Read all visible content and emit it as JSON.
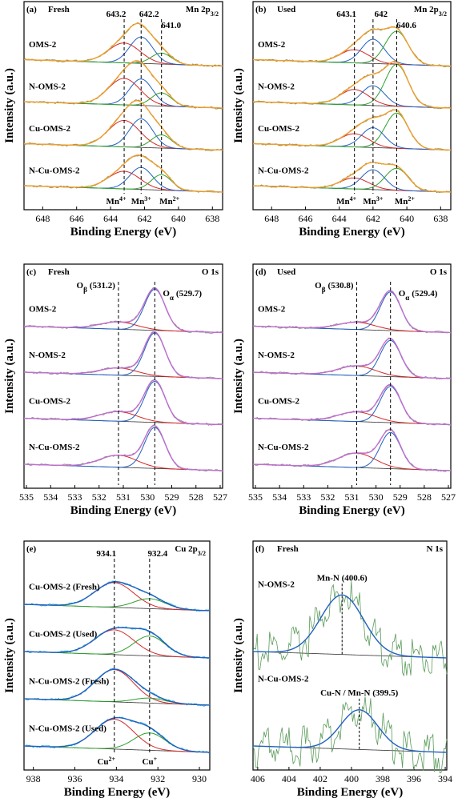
{
  "chart_data": [
    {
      "type": "line",
      "label": "(a)",
      "condition": "Fresh",
      "element": "Mn 2p",
      "element_sub": "3/2",
      "xlabel": "Binding Energy (eV)",
      "ylabel": "Intensity (a.u.)",
      "xlim": [
        649.1,
        637.4
      ],
      "xticks": [
        648,
        646,
        644,
        642,
        640,
        638
      ],
      "peak_lines": [
        643.2,
        642.2,
        {
          "value": 641.0,
          "label": "641.0"
        }
      ],
      "species": [
        {
          "name": "Mn",
          "charge": "4+"
        },
        {
          "name": "Mn",
          "charge": "3+"
        },
        {
          "name": "Mn",
          "charge": "2+"
        }
      ],
      "fwhm": [
        2.2,
        1.6,
        1.4
      ],
      "colors": [
        "#d62728",
        "#2060c0",
        "#2ca02c"
      ],
      "envelope_color": "#f0a030",
      "raw_color": "#8a8a50",
      "samples": [
        {
          "name": "OMS-2",
          "heights": [
            0.45,
            0.6,
            0.25
          ]
        },
        {
          "name": "N-OMS-2",
          "heights": [
            0.6,
            0.6,
            0.3
          ]
        },
        {
          "name": "Cu-OMS-2",
          "heights": [
            0.6,
            0.65,
            0.3
          ]
        },
        {
          "name": "N-Cu-OMS-2",
          "heights": [
            0.4,
            0.5,
            0.35
          ]
        }
      ]
    },
    {
      "type": "line",
      "label": "(b)",
      "condition": "Used",
      "element": "Mn 2p",
      "element_sub": "3/2",
      "xlabel": "Binding Energy (eV)",
      "ylabel": "Intensity (a.u.)",
      "xlim": [
        649.1,
        637.4
      ],
      "xticks": [
        648,
        646,
        644,
        642,
        640,
        638
      ],
      "peak_lines": [
        643.1,
        642,
        640.6
      ],
      "species": [
        {
          "name": "Mn",
          "charge": "4+"
        },
        {
          "name": "Mn",
          "charge": "3+"
        },
        {
          "name": "Mn",
          "charge": "2+"
        }
      ],
      "fwhm": [
        2.0,
        1.6,
        1.6
      ],
      "colors": [
        "#d62728",
        "#2060c0",
        "#2ca02c"
      ],
      "envelope_color": "#f0a030",
      "raw_color": "#8a8a50",
      "samples": [
        {
          "name": "OMS-2",
          "heights": [
            0.3,
            0.55,
            0.75
          ]
        },
        {
          "name": "N-OMS-2",
          "heights": [
            0.35,
            0.45,
            0.95
          ]
        },
        {
          "name": "Cu-OMS-2",
          "heights": [
            0.3,
            0.45,
            0.8
          ]
        },
        {
          "name": "N-Cu-OMS-2",
          "heights": [
            0.25,
            0.45,
            0.5
          ]
        }
      ]
    },
    {
      "type": "line",
      "label": "(c)",
      "condition": "Fresh",
      "element": "O 1s",
      "xlabel": "Binding Energy (eV)",
      "ylabel": "Intensity (a.u.)",
      "xlim": [
        535.1,
        526.9
      ],
      "xticks": [
        535,
        534,
        533,
        532,
        531,
        530,
        529,
        528,
        527
      ],
      "peak_lines": [
        {
          "value": 531.2,
          "label": "(531.2)"
        },
        {
          "value": 529.7,
          "label": "(529.7)"
        }
      ],
      "species": [
        {
          "name": "O",
          "sub": "β"
        },
        {
          "name": "O",
          "sub": "α"
        }
      ],
      "fwhm": [
        1.8,
        1.0
      ],
      "colors": [
        "#d62728",
        "#2060c0"
      ],
      "envelope_color": "#c070d0",
      "raw_color": "#909090",
      "samples": [
        {
          "name": "OMS-2",
          "heights": [
            0.15,
            0.85
          ]
        },
        {
          "name": "N-OMS-2",
          "heights": [
            0.15,
            0.9
          ]
        },
        {
          "name": "Cu-OMS-2",
          "heights": [
            0.2,
            0.85
          ]
        },
        {
          "name": "N-Cu-OMS-2",
          "heights": [
            0.25,
            0.85
          ]
        }
      ]
    },
    {
      "type": "line",
      "label": "(d)",
      "condition": "Used",
      "element": "O 1s",
      "xlabel": "Binding Energy (eV)",
      "ylabel": "Intensity (a.u.)",
      "xlim": [
        535.1,
        526.9
      ],
      "xticks": [
        535,
        534,
        533,
        532,
        531,
        530,
        529,
        528,
        527
      ],
      "peak_lines": [
        {
          "value": 530.8,
          "label": "(530.8)"
        },
        {
          "value": 529.4,
          "label": "(529.4)"
        }
      ],
      "species": [
        {
          "name": "O",
          "sub": "β"
        },
        {
          "name": "O",
          "sub": "α"
        }
      ],
      "fwhm": [
        1.8,
        1.0
      ],
      "colors": [
        "#d62728",
        "#2060c0"
      ],
      "envelope_color": "#c070d0",
      "raw_color": "#909090",
      "samples": [
        {
          "name": "OMS-2",
          "heights": [
            0.15,
            0.8
          ]
        },
        {
          "name": "N-OMS-2",
          "heights": [
            0.2,
            0.75
          ]
        },
        {
          "name": "Cu-OMS-2",
          "heights": [
            0.2,
            0.75
          ]
        },
        {
          "name": "N-Cu-OMS-2",
          "heights": [
            0.3,
            0.75
          ]
        }
      ]
    },
    {
      "type": "line",
      "label": "(e)",
      "element": "Cu 2p",
      "element_sub": "3/2",
      "xlabel": "Binding Energy (eV)",
      "ylabel": "Intensity (a.u.)",
      "xlim": [
        938.45,
        929.5
      ],
      "xticks": [
        938,
        936,
        934,
        932,
        930
      ],
      "peak_lines": [
        934.1,
        932.4
      ],
      "species": [
        {
          "name": "Cu",
          "charge": "2+"
        },
        {
          "name": "Cu",
          "charge": "+"
        }
      ],
      "fwhm": [
        2.2,
        1.8
      ],
      "colors": [
        "#d62728",
        "#2ca02c"
      ],
      "envelope_color": "#2060c0",
      "raw_color": "#30b0e0",
      "samples": [
        {
          "name": "Cu-OMS-2 (Fresh)",
          "heights": [
            0.5,
            0.2
          ]
        },
        {
          "name": "Cu-OMS-2 (Used)",
          "heights": [
            0.5,
            0.4
          ]
        },
        {
          "name": "N-Cu-OMS-2 (Fresh)",
          "heights": [
            0.65,
            0.1
          ]
        },
        {
          "name": "N-Cu-OMS-2 (Used)",
          "heights": [
            0.6,
            0.35
          ]
        }
      ]
    },
    {
      "type": "line",
      "label": "(f)",
      "condition": "Fresh",
      "element": "N 1s",
      "xlabel": "Binding Energy (eV)",
      "ylabel": "Intensity (a.u.)",
      "xlim": [
        406.3,
        393.9
      ],
      "xticks": [
        406,
        404,
        402,
        400,
        398,
        396,
        394
      ],
      "envelope_color": "#2060c0",
      "raw_color": "#5a9a5a",
      "samples": [
        {
          "name": "N-OMS-2",
          "peak": {
            "value": 400.6,
            "label": "Mn-N (400.6)"
          },
          "fwhm": 3.2,
          "height": 0.6
        },
        {
          "name": "N-Cu-OMS-2",
          "peak": {
            "value": 399.5,
            "label": "Cu-N / Mn-N (399.5)"
          },
          "fwhm": 2.8,
          "height": 0.4
        }
      ]
    }
  ]
}
